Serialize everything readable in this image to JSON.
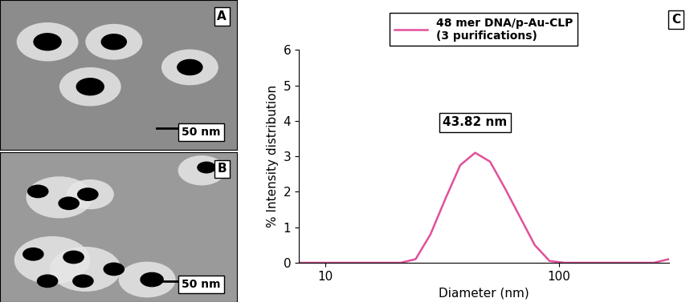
{
  "images": [
    {
      "label": "A",
      "scale_bar": "50 nm"
    },
    {
      "label": "B",
      "scale_bar": "50 nm"
    }
  ],
  "chart_data": {
    "type": "line",
    "panel_label": "C",
    "x_label": "Diameter (nm)",
    "y_label": "% Intensity distribution",
    "x": [
      7.531,
      8.721,
      10.1,
      11.7,
      13.54,
      15.69,
      18.17,
      21.04,
      24.36,
      28.21,
      32.67,
      37.84,
      43.82,
      50.75,
      58.77,
      68.06,
      78.82,
      91.28,
      105.7,
      122.4,
      141.8,
      164.2,
      190.1,
      220.2,
      255.0,
      295.3
    ],
    "series": [
      {
        "name": "48 mer DNA/p-Au-CLP\n(3 purifications)",
        "color": "#e0509a",
        "values": [
          0,
          0,
          0,
          0,
          0,
          0,
          0,
          0,
          0.1,
          0.8,
          1.8,
          2.75,
          3.1,
          2.85,
          2.1,
          1.3,
          0.5,
          0.05,
          0,
          0,
          0,
          0,
          0,
          0,
          0,
          0.1
        ]
      }
    ],
    "annotations": [
      {
        "text": "43.82 nm",
        "x": 43.82,
        "y": 3.1
      }
    ],
    "log": "x",
    "xlim": [
      7.7,
      295.3
    ],
    "xticks": [
      10,
      100
    ],
    "ylim": [
      0,
      6
    ],
    "yticks": [
      0,
      1,
      2,
      3,
      4,
      5,
      6
    ],
    "legend": "upper center",
    "grid": false
  }
}
